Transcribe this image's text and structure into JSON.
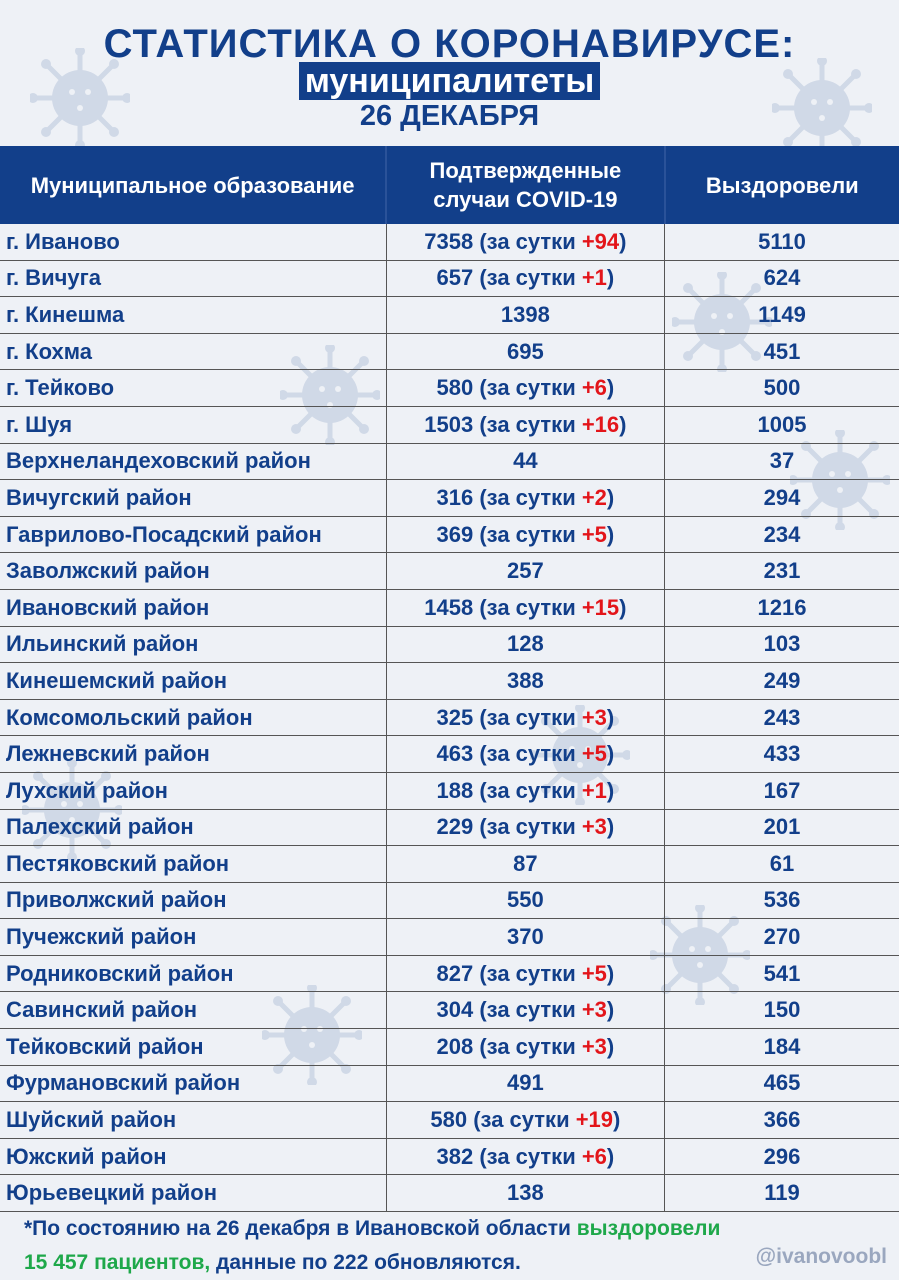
{
  "header": {
    "title": "СТАТИСТИКА О КОРОНАВИРУСЕ:",
    "subtitle": "муниципалитеты",
    "date": "26 ДЕКАБРЯ"
  },
  "colors": {
    "primary": "#123f8a",
    "delta": "#e3151a",
    "green": "#1ea84a"
  },
  "table": {
    "columns": [
      "Муниципальное образование",
      "Подтвержденные случаи COVID-19",
      "Выздоровели"
    ],
    "delta_prefix": "(за сутки ",
    "delta_suffix": ")",
    "rows": [
      {
        "name": "г. Иваново",
        "cases": "7358",
        "delta": "+94",
        "recovered": "5110"
      },
      {
        "name": "г. Вичуга",
        "cases": "657",
        "delta": "+1",
        "recovered": "624"
      },
      {
        "name": "г. Кинешма",
        "cases": "1398",
        "delta": null,
        "recovered": "1149"
      },
      {
        "name": "г. Кохма",
        "cases": "695",
        "delta": null,
        "recovered": "451"
      },
      {
        "name": "г. Тейково",
        "cases": "580",
        "delta": "+6",
        "recovered": "500"
      },
      {
        "name": "г. Шуя",
        "cases": "1503",
        "delta": "+16",
        "recovered": "1005"
      },
      {
        "name": "Верхнеландеховский район",
        "cases": "44",
        "delta": null,
        "recovered": "37"
      },
      {
        "name": "Вичугский район",
        "cases": "316",
        "delta": "+2",
        "recovered": "294"
      },
      {
        "name": "Гаврилово-Посадский район",
        "cases": "369",
        "delta": "+5",
        "recovered": "234"
      },
      {
        "name": "Заволжский район",
        "cases": "257",
        "delta": null,
        "recovered": "231"
      },
      {
        "name": "Ивановский район",
        "cases": "1458",
        "delta": "+15",
        "recovered": "1216"
      },
      {
        "name": "Ильинский район",
        "cases": "128",
        "delta": null,
        "recovered": "103"
      },
      {
        "name": "Кинешемский район",
        "cases": "388",
        "delta": null,
        "recovered": "249"
      },
      {
        "name": "Комсомольский район",
        "cases": "325",
        "delta": "+3",
        "recovered": "243"
      },
      {
        "name": "Лежневский район",
        "cases": "463",
        "delta": "+5",
        "recovered": "433"
      },
      {
        "name": "Лухский район",
        "cases": "188",
        "delta": "+1",
        "recovered": "167"
      },
      {
        "name": "Палехский район",
        "cases": "229",
        "delta": "+3",
        "recovered": "201"
      },
      {
        "name": "Пестяковский район",
        "cases": "87",
        "delta": null,
        "recovered": "61"
      },
      {
        "name": "Приволжский район",
        "cases": "550",
        "delta": null,
        "recovered": "536"
      },
      {
        "name": "Пучежский район",
        "cases": "370",
        "delta": null,
        "recovered": "270"
      },
      {
        "name": "Родниковский район",
        "cases": "827",
        "delta": "+5",
        "recovered": "541"
      },
      {
        "name": "Савинский район",
        "cases": "304",
        "delta": "+3",
        "recovered": "150"
      },
      {
        "name": "Тейковский район",
        "cases": "208",
        "delta": "+3",
        "recovered": "184"
      },
      {
        "name": "Фурмановский район",
        "cases": "491",
        "delta": null,
        "recovered": "465"
      },
      {
        "name": "Шуйский район",
        "cases": "580",
        "delta": "+19",
        "recovered": "366"
      },
      {
        "name": "Южский район",
        "cases": "382",
        "delta": "+6",
        "recovered": "296"
      },
      {
        "name": "Юрьевецкий район",
        "cases": "138",
        "delta": null,
        "recovered": "119"
      }
    ]
  },
  "footer": {
    "note_part1": "*По состоянию на 26 декабря в Ивановской области ",
    "note_green": "выздоровели",
    "note_green2": "15 457 пациентов,",
    "note_part2": " данные по 222 обновляются.",
    "handle": "@ivanovoobl"
  },
  "icons": [
    "virus-icon"
  ]
}
